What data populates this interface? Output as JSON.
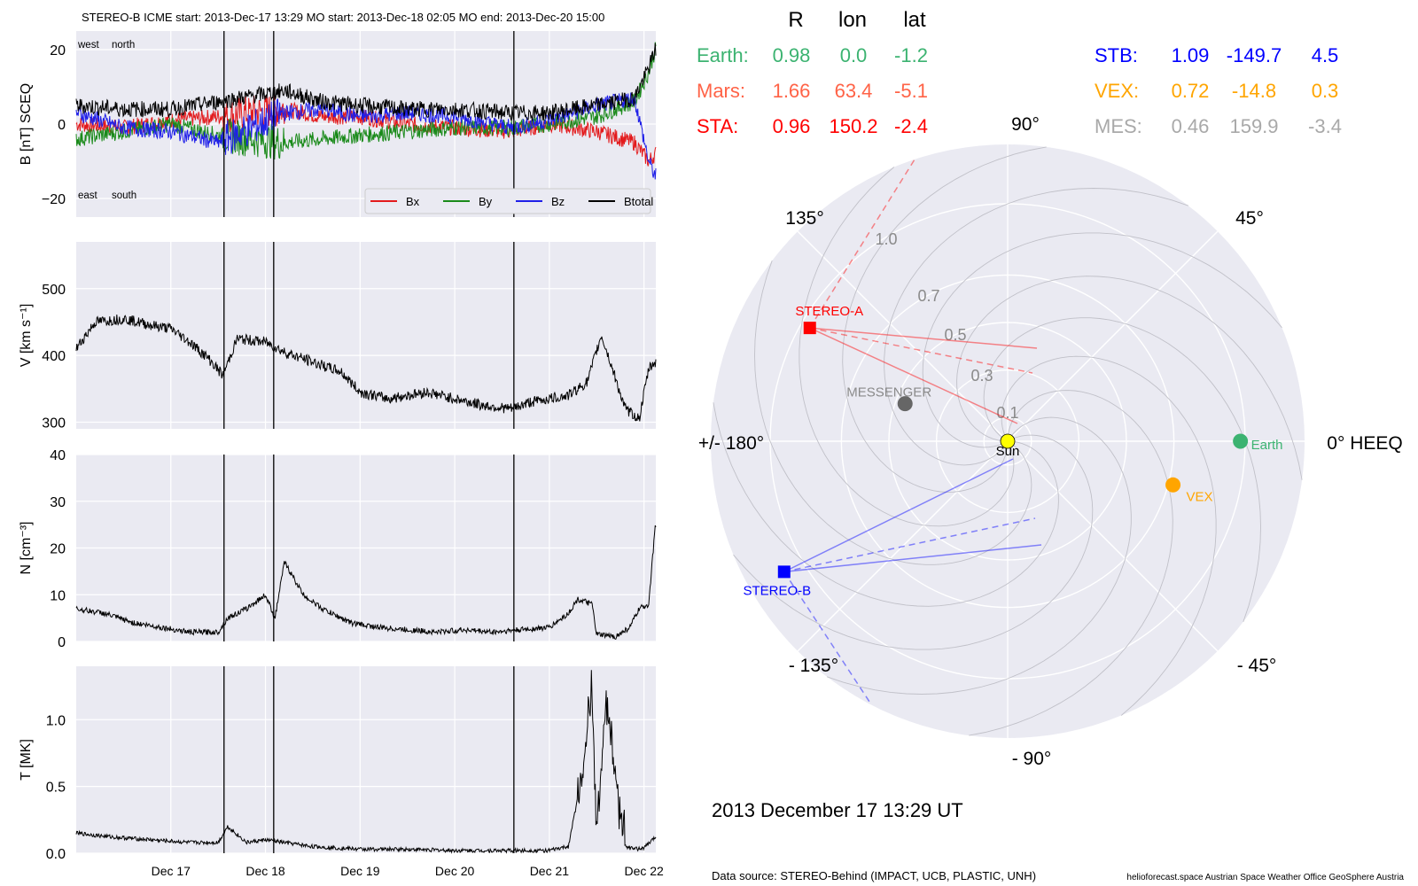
{
  "header": {
    "title": "STEREO-B    ICME start: 2013-Dec-17 13:29   MO start: 2013-Dec-18 02:05   MO end: 2013-Dec-20 15:00"
  },
  "colors": {
    "bx": "#e31a1c",
    "by": "#1a8a1a",
    "bz": "#1f1fe8",
    "btotal": "#000000",
    "panel_bg": "#eaeaf2",
    "earth": "#3cb371",
    "mars": "#ff6347",
    "sta": "#ff0000",
    "stb": "#0000ff",
    "vex": "#ffa500",
    "mes": "#a9a9a9",
    "messenger_dot": "#666666",
    "sun": "#ffff00"
  },
  "chart_data": [
    {
      "type": "line",
      "panel": "magnetic-field",
      "ylabel": "B [nT] SCEQ",
      "ylim": [
        -25,
        25
      ],
      "yticks": [
        "20",
        "0",
        "−20"
      ],
      "x_range": [
        "2013-12-16 00:00",
        "2013-12-22 03:00"
      ],
      "xticks": [
        "Dec 17",
        "Dec 18",
        "Dec 19",
        "Dec 20",
        "Dec 21",
        "Dec 22"
      ],
      "grid": true,
      "corner_labels": {
        "top_left_1": "west",
        "top_left_2": "north",
        "bottom_left_1": "east",
        "bottom_left_2": "south"
      },
      "legend": {
        "placement": "lower right",
        "entries": [
          "Bx",
          "By",
          "Bz",
          "Btotal"
        ]
      },
      "event_lines": [
        "2013-12-17 13:29",
        "2013-12-18 02:05",
        "2013-12-20 15:00"
      ],
      "series": [
        {
          "name": "Bx",
          "x": [
            0,
            0.5,
            1,
            1.5,
            2.2,
            2.6,
            3,
            3.5,
            4,
            4.6,
            5,
            5.5,
            5.9,
            6.05,
            6.12
          ],
          "y": [
            0,
            -1,
            1,
            2,
            4,
            2,
            2,
            0,
            -1,
            -2,
            0,
            -2,
            -5,
            -10,
            -8
          ]
        },
        {
          "name": "By",
          "x": [
            0,
            0.5,
            1,
            1.5,
            2.2,
            2.6,
            3,
            3.5,
            4,
            4.6,
            5,
            5.5,
            5.9,
            6.05,
            6.12
          ],
          "y": [
            -4,
            -2,
            0,
            -3,
            -5,
            -4,
            -3,
            -2,
            -1,
            -1,
            0,
            2,
            6,
            14,
            20
          ]
        },
        {
          "name": "Bz",
          "x": [
            0,
            0.5,
            1,
            1.5,
            2.2,
            2.6,
            3,
            3.5,
            4,
            4.6,
            5,
            5.5,
            5.9,
            6.05,
            6.12
          ],
          "y": [
            3,
            -1,
            -2,
            -5,
            3,
            4,
            2,
            3,
            2,
            -1,
            1,
            5,
            7,
            -10,
            -14
          ]
        },
        {
          "name": "Btotal",
          "x": [
            0,
            0.5,
            1,
            1.5,
            2.2,
            2.6,
            3,
            3.5,
            4,
            4.6,
            5,
            5.5,
            5.9,
            6.05,
            6.12
          ],
          "y": [
            5,
            4,
            4,
            6,
            9,
            6,
            5,
            4,
            4,
            3,
            3,
            5,
            7,
            15,
            20
          ]
        }
      ]
    },
    {
      "type": "line",
      "panel": "speed",
      "ylabel": "V [km s⁻¹]",
      "ylim": [
        290,
        570
      ],
      "yticks": [
        "500",
        "400",
        "300"
      ],
      "grid": true,
      "series": [
        {
          "name": "",
          "x": [
            0,
            0.2,
            0.5,
            0.8,
            1.0,
            1.2,
            1.4,
            1.55,
            1.7,
            2.0,
            2.2,
            2.5,
            2.8,
            3.0,
            3.3,
            3.7,
            4.0,
            4.3,
            4.6,
            4.8,
            5.0,
            5.2,
            5.4,
            5.55,
            5.7,
            5.8,
            5.95,
            6.05,
            6.15
          ],
          "y": [
            410,
            450,
            455,
            445,
            440,
            420,
            395,
            370,
            425,
            420,
            405,
            390,
            375,
            345,
            335,
            345,
            335,
            325,
            320,
            330,
            335,
            340,
            360,
            430,
            365,
            320,
            305,
            380,
            395
          ]
        }
      ]
    },
    {
      "type": "line",
      "panel": "density",
      "ylabel": "N [cm⁻³]",
      "ylim": [
        0,
        40
      ],
      "yticks": [
        "40",
        "30",
        "20",
        "10",
        "0"
      ],
      "grid": true,
      "series": [
        {
          "name": "",
          "x": [
            0,
            0.3,
            0.6,
            0.9,
            1.2,
            1.5,
            1.6,
            1.8,
            2.0,
            2.1,
            2.2,
            2.4,
            2.6,
            2.9,
            3.2,
            3.5,
            3.8,
            4.1,
            4.4,
            4.7,
            5.0,
            5.2,
            5.3,
            5.45,
            5.5,
            5.7,
            5.85,
            5.95,
            6.05,
            6.12
          ],
          "y": [
            7,
            6,
            4,
            3,
            2,
            2,
            5,
            7,
            10,
            5,
            17,
            10,
            7,
            4,
            3,
            2.5,
            2,
            2.5,
            2,
            2.5,
            3,
            6,
            9,
            8,
            1.5,
            1,
            3,
            7,
            8,
            25
          ]
        }
      ]
    },
    {
      "type": "line",
      "panel": "temperature",
      "ylabel": "T [MK]",
      "ylim": [
        0,
        1.4
      ],
      "yticks": [
        "1.0",
        "0.5",
        "0.0"
      ],
      "grid": true,
      "series": [
        {
          "name": "",
          "x": [
            0,
            0.4,
            0.8,
            1.2,
            1.5,
            1.6,
            1.8,
            2.0,
            2.2,
            2.5,
            3.0,
            3.5,
            4.0,
            4.5,
            5.0,
            5.2,
            5.35,
            5.45,
            5.5,
            5.6,
            5.7,
            5.8,
            5.9,
            6.0,
            6.12
          ],
          "y": [
            0.15,
            0.12,
            0.1,
            0.08,
            0.08,
            0.2,
            0.08,
            0.1,
            0.08,
            0.05,
            0.03,
            0.03,
            0.02,
            0.02,
            0.02,
            0.05,
            0.6,
            1.2,
            0.2,
            1.15,
            0.6,
            0.05,
            0.03,
            0.04,
            0.12
          ]
        }
      ]
    },
    {
      "type": "scatter",
      "panel": "heliospheric-positions",
      "coordinate": "polar",
      "angle_labels": [
        "0° HEEQ",
        "45°",
        "90°",
        "135°",
        "+/- 180°",
        "- 135°",
        "- 90°",
        "- 45°"
      ],
      "r_labels": [
        "0.1",
        "0.3",
        "0.5",
        "0.7",
        "1.0"
      ],
      "r_max_au": 1.25,
      "bodies": [
        {
          "name": "Sun",
          "r": 0.0,
          "lon": 0,
          "color": "#ffff00",
          "marker": "circle"
        },
        {
          "name": "Earth",
          "r": 0.98,
          "lon": 0.0,
          "color": "#3cb371",
          "marker": "circle"
        },
        {
          "name": "VEX",
          "r": 0.72,
          "lon": -14.8,
          "color": "#ffa500",
          "marker": "circle"
        },
        {
          "name": "MESSENGER",
          "r": 0.46,
          "lon": 159.9,
          "color": "#666666",
          "marker": "circle"
        },
        {
          "name": "STEREO-A",
          "r": 0.96,
          "lon": 150.2,
          "color": "#ff0000",
          "marker": "square"
        },
        {
          "name": "STEREO-B",
          "r": 1.09,
          "lon": -149.7,
          "color": "#0000ff",
          "marker": "square"
        }
      ]
    }
  ],
  "positions": {
    "col_headers": [
      "R",
      "lon",
      "lat"
    ],
    "rows": [
      {
        "label": "Earth:",
        "R": "0.98",
        "lon": "0.0",
        "lat": "-1.2"
      },
      {
        "label": "Mars:",
        "R": "1.66",
        "lon": "63.4",
        "lat": "-5.1"
      },
      {
        "label": "STA:",
        "R": "0.96",
        "lon": "150.2",
        "lat": "-2.4"
      },
      {
        "label": "STB:",
        "R": "1.09",
        "lon": "-149.7",
        "lat": "4.5"
      },
      {
        "label": "VEX:",
        "R": "0.72",
        "lon": "-14.8",
        "lat": "0.3"
      },
      {
        "label": "MES:",
        "R": "0.46",
        "lon": "159.9",
        "lat": "-3.4"
      }
    ]
  },
  "footer": {
    "date": "2013 December 17  13:29 UT",
    "source": "Data source: STEREO-Behind (IMPACT, UCB, PLASTIC, UNH)",
    "credit": "helioforecast.space   Austrian Space Weather Office   GeoSphere Austria"
  }
}
